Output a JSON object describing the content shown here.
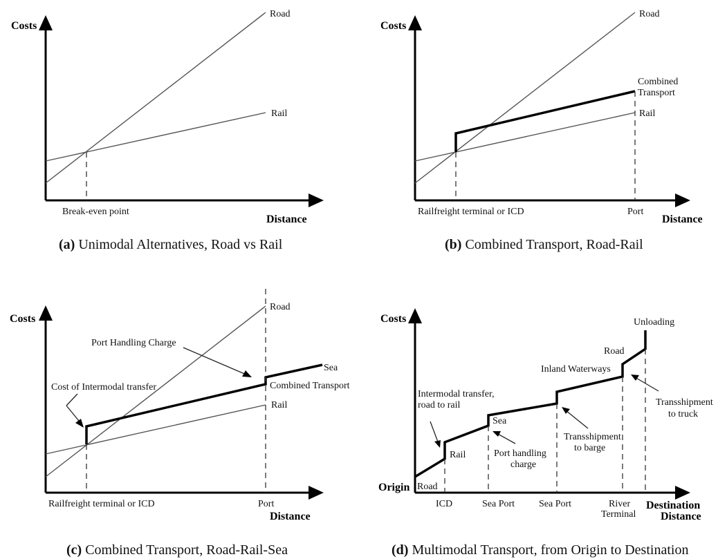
{
  "panel_a": {
    "y_label": "Costs",
    "x_label": "Distance",
    "road": "Road",
    "rail": "Rail",
    "break_even": "Break-even point",
    "caption_tag": "(a)",
    "caption": "Unimodal Alternatives, Road vs Rail"
  },
  "panel_b": {
    "y_label": "Costs",
    "x_label": "Distance",
    "road": "Road",
    "combined_1": "Combined",
    "combined_2": "Transport",
    "rail": "Rail",
    "terminal": "Railfreight terminal or ICD",
    "port": "Port",
    "caption_tag": "(b)",
    "caption": "Combined Transport, Road-Rail"
  },
  "panel_c": {
    "y_label": "Costs",
    "x_label": "Distance",
    "road": "Road",
    "port_handling": "Port Handling Charge",
    "sea": "Sea",
    "combined": "Combined Transport",
    "rail": "Rail",
    "intermodal": "Cost of Intermodal transfer",
    "terminal": "Railfreight terminal or ICD",
    "port": "Port",
    "caption_tag": "(c)",
    "caption": "Combined Transport, Road-Rail-Sea"
  },
  "panel_d": {
    "y_label": "Costs",
    "origin": "Origin",
    "destination": "Destination",
    "x_label": "Distance",
    "unloading": "Unloading",
    "road_top": "Road",
    "inland": "Inland Waterways",
    "transfer_1": "Intermodal transfer,",
    "transfer_2": "road to rail",
    "sea": "Sea",
    "rail": "Rail",
    "road_bottom": "Road",
    "port_handling_1": "Port handling",
    "port_handling_2": "charge",
    "transship_barge_1": "Transshipment",
    "transship_barge_2": "to barge",
    "transship_truck_1": "Transshipment",
    "transship_truck_2": "to truck",
    "icd": "ICD",
    "sea_port_1": "Sea Port",
    "sea_port_2": "Sea Port",
    "river_1": "River",
    "river_2": "Terminal",
    "caption_tag": "(d)",
    "caption": "Multimodal Transport, from Origin to Destination"
  }
}
